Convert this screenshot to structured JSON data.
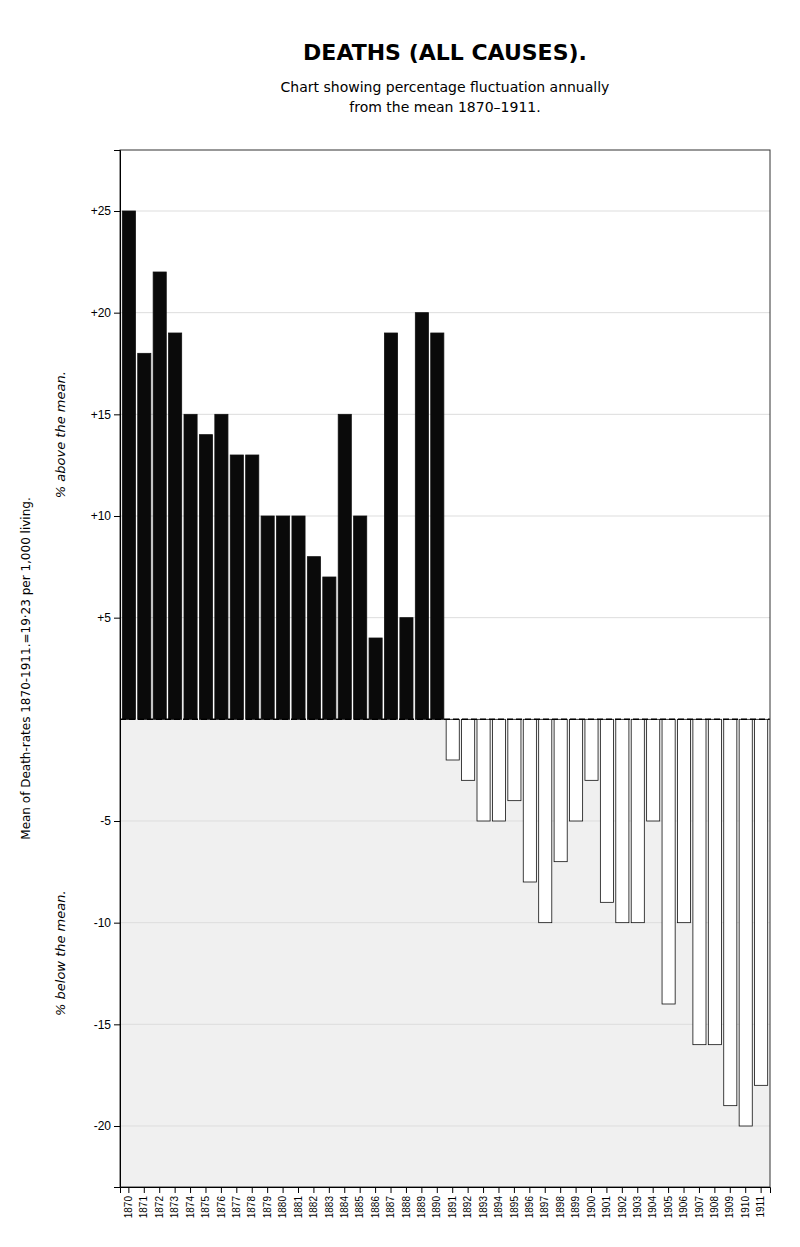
{
  "chart_data": {
    "type": "bar",
    "title": "DEATHS (ALL CAUSES).",
    "subtitle": [
      "Chart showing percentage fluctuation annually",
      "from the mean 1870–1911."
    ],
    "y_label": [
      "% above the mean.",
      "% below the mean."
    ],
    "annotations": [
      "Mean of Death-rates 1870-1911.=19·23 per 1,000 living."
    ],
    "categories": [
      1870,
      1871,
      1872,
      1873,
      1874,
      1875,
      1876,
      1877,
      1878,
      1879,
      1880,
      1881,
      1882,
      1883,
      1884,
      1885,
      1886,
      1887,
      1888,
      1889,
      1890,
      1891,
      1892,
      1893,
      1894,
      1895,
      1896,
      1897,
      1898,
      1899,
      1900,
      1901,
      1902,
      1903,
      1904,
      1905,
      1906,
      1907,
      1908,
      1909,
      1910,
      1911
    ],
    "values": [
      25,
      18,
      22,
      19,
      15,
      14,
      15,
      13,
      13,
      10,
      10,
      10,
      8,
      7,
      15,
      10,
      4,
      19,
      5,
      20,
      19,
      -2,
      -3,
      -5,
      -5,
      -4,
      -8,
      -10,
      -7,
      -5,
      -3,
      -9,
      -10,
      -10,
      -5,
      -14,
      -10,
      -16,
      -16,
      -19,
      -20,
      -18
    ],
    "colors": [
      "#0a0a0a",
      "#0a0a0a",
      "#0a0a0a",
      "#0a0a0a",
      "#0a0a0a",
      "#0a0a0a",
      "#0a0a0a",
      "#0a0a0a",
      "#0a0a0a",
      "#0a0a0a",
      "#0a0a0a",
      "#0a0a0a",
      "#0a0a0a",
      "#0a0a0a",
      "#0a0a0a",
      "#0a0a0a",
      "#0a0a0a",
      "#0a0a0a",
      "#0a0a0a",
      "#0a0a0a",
      "#0a0a0a",
      "#ffffff",
      "#ffffff",
      "#ffffff",
      "#ffffff",
      "#ffffff",
      "#ffffff",
      "#ffffff",
      "#ffffff",
      "#ffffff",
      "#ffffff",
      "#ffffff",
      "#ffffff",
      "#ffffff",
      "#ffffff",
      "#ffffff",
      "#ffffff",
      "#ffffff",
      "#ffffff",
      "#ffffff",
      "#ffffff",
      "#ffffff"
    ],
    "ylim": [
      -23,
      28
    ],
    "yticks": [
      -20,
      -15,
      -10,
      -5,
      {
        "value": 5,
        "label": "+5"
      },
      {
        "value": 10,
        "label": "+10"
      },
      {
        "value": 15,
        "label": "+15"
      },
      {
        "value": 20,
        "label": "+20"
      },
      {
        "value": 25,
        "label": "+25"
      }
    ],
    "grid": true
  }
}
